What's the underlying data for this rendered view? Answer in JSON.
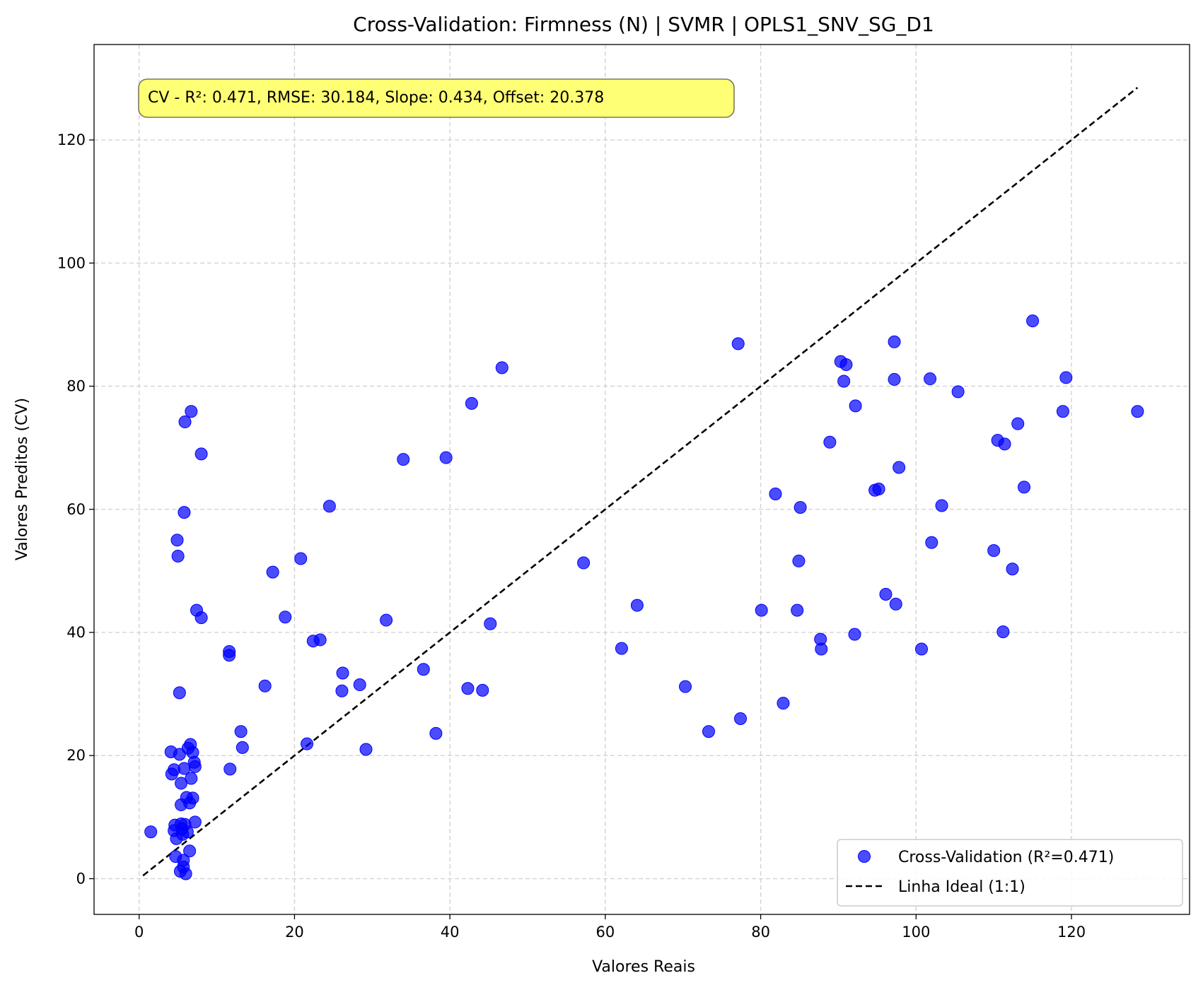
{
  "chart_data": {
    "type": "scatter",
    "title": "Cross-Validation: Firmness (N) | SVMR | OPLS1_SNV_SG_D1",
    "xlabel": "Valores Reais",
    "ylabel": "Valores Preditos (CV)",
    "xlim": [
      -5.8,
      135.2
    ],
    "ylim": [
      -5.8,
      135.5
    ],
    "xticks": [
      "0",
      "20",
      "40",
      "60",
      "80",
      "100",
      "120"
    ],
    "yticks": [
      "0",
      "20",
      "40",
      "60",
      "80",
      "100",
      "120"
    ],
    "grid": true,
    "annotation": "CV - R²: 0.471, RMSE: 30.184, Slope: 0.434, Offset: 20.378",
    "legend": {
      "placement": "bottom-right",
      "entries": [
        "Cross-Validation (R²=0.471)",
        "Linha Ideal (1:1)"
      ]
    },
    "colors": {
      "points": "#0000ff",
      "ideal_line": "#000000",
      "annotation_bg": "#ffff66"
    },
    "ideal_line": {
      "x": [
        0.5,
        128.5
      ],
      "y": [
        0.5,
        128.5
      ]
    },
    "series": [
      {
        "name": "Cross-Validation (R²=0.471)",
        "points": [
          [
            1.5,
            7.6
          ],
          [
            4.1,
            20.6
          ],
          [
            4.2,
            17.0
          ],
          [
            4.5,
            17.7
          ],
          [
            4.5,
            7.8
          ],
          [
            4.6,
            8.7
          ],
          [
            4.7,
            3.6
          ],
          [
            4.8,
            6.5
          ],
          [
            4.9,
            55.0
          ],
          [
            5.0,
            52.4
          ],
          [
            5.2,
            30.2
          ],
          [
            5.2,
            20.2
          ],
          [
            5.3,
            1.2
          ],
          [
            5.4,
            12.0
          ],
          [
            5.4,
            15.5
          ],
          [
            5.4,
            8.9
          ],
          [
            5.5,
            8.1
          ],
          [
            5.6,
            7.2
          ],
          [
            5.7,
            1.9
          ],
          [
            5.7,
            3.0
          ],
          [
            5.8,
            59.5
          ],
          [
            5.8,
            17.9
          ],
          [
            5.9,
            74.2
          ],
          [
            5.9,
            8.8
          ],
          [
            6.0,
            0.8
          ],
          [
            6.1,
            13.2
          ],
          [
            6.2,
            7.6
          ],
          [
            6.3,
            21.2
          ],
          [
            6.5,
            4.5
          ],
          [
            6.5,
            12.3
          ],
          [
            6.6,
            21.8
          ],
          [
            6.7,
            75.9
          ],
          [
            6.7,
            16.3
          ],
          [
            6.9,
            13.1
          ],
          [
            6.9,
            20.5
          ],
          [
            7.1,
            18.9
          ],
          [
            7.2,
            18.2
          ],
          [
            7.2,
            9.2
          ],
          [
            7.4,
            43.6
          ],
          [
            8.0,
            42.4
          ],
          [
            8.0,
            69.0
          ],
          [
            11.6,
            36.9
          ],
          [
            11.6,
            36.3
          ],
          [
            11.7,
            17.8
          ],
          [
            13.1,
            23.9
          ],
          [
            13.3,
            21.3
          ],
          [
            16.2,
            31.3
          ],
          [
            17.2,
            49.8
          ],
          [
            18.8,
            42.5
          ],
          [
            20.8,
            52.0
          ],
          [
            21.6,
            21.9
          ],
          [
            22.4,
            38.6
          ],
          [
            23.3,
            38.8
          ],
          [
            24.5,
            60.5
          ],
          [
            26.1,
            30.5
          ],
          [
            26.2,
            33.4
          ],
          [
            28.4,
            31.5
          ],
          [
            29.2,
            21.0
          ],
          [
            31.8,
            42.0
          ],
          [
            34.0,
            68.1
          ],
          [
            36.6,
            34.0
          ],
          [
            38.2,
            23.6
          ],
          [
            39.5,
            68.4
          ],
          [
            42.3,
            30.9
          ],
          [
            42.8,
            77.2
          ],
          [
            44.2,
            30.6
          ],
          [
            45.2,
            41.4
          ],
          [
            46.7,
            83.0
          ],
          [
            57.2,
            51.3
          ],
          [
            62.1,
            37.4
          ],
          [
            64.1,
            44.4
          ],
          [
            70.3,
            31.2
          ],
          [
            73.3,
            23.9
          ],
          [
            77.1,
            86.9
          ],
          [
            77.4,
            26.0
          ],
          [
            80.1,
            43.6
          ],
          [
            81.9,
            62.5
          ],
          [
            82.9,
            28.5
          ],
          [
            84.7,
            43.6
          ],
          [
            84.9,
            51.6
          ],
          [
            85.1,
            60.3
          ],
          [
            87.7,
            38.9
          ],
          [
            87.8,
            37.3
          ],
          [
            88.9,
            70.9
          ],
          [
            90.3,
            84.0
          ],
          [
            90.7,
            80.8
          ],
          [
            91.0,
            83.5
          ],
          [
            92.1,
            39.7
          ],
          [
            92.2,
            76.8
          ],
          [
            94.7,
            63.1
          ],
          [
            95.2,
            63.3
          ],
          [
            96.1,
            46.2
          ],
          [
            97.2,
            87.2
          ],
          [
            97.2,
            81.1
          ],
          [
            97.4,
            44.6
          ],
          [
            97.8,
            66.8
          ],
          [
            100.7,
            37.3
          ],
          [
            101.8,
            81.2
          ],
          [
            102.0,
            54.6
          ],
          [
            103.3,
            60.6
          ],
          [
            105.4,
            79.1
          ],
          [
            110.0,
            53.3
          ],
          [
            110.5,
            71.2
          ],
          [
            111.2,
            40.1
          ],
          [
            111.4,
            70.6
          ],
          [
            112.4,
            50.3
          ],
          [
            113.1,
            73.9
          ],
          [
            113.9,
            63.6
          ],
          [
            115.0,
            90.6
          ],
          [
            118.9,
            75.9
          ],
          [
            119.3,
            81.4
          ],
          [
            128.5,
            75.9
          ]
        ]
      }
    ]
  }
}
